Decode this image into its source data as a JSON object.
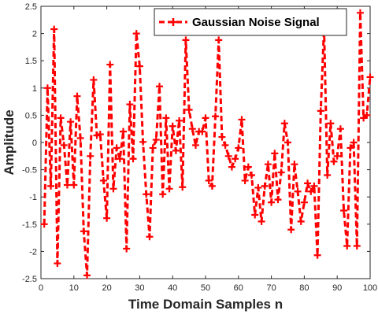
{
  "chart_data": {
    "type": "line",
    "xlabel": "Time Domain Samples n",
    "ylabel": "Amplitude",
    "xlim": [
      0,
      100
    ],
    "ylim": [
      -2.5,
      2.5
    ],
    "xticks": [
      0,
      10,
      20,
      30,
      40,
      50,
      60,
      70,
      80,
      90,
      100
    ],
    "yticks": [
      -2.5,
      -2,
      -1.5,
      -1,
      -0.5,
      0,
      0.5,
      1,
      1.5,
      2,
      2.5
    ],
    "grid": false,
    "legend_position": "top-right",
    "series": [
      {
        "name": "Gaussian Noise Signal",
        "color": "#ff0000",
        "line_style": "dashed",
        "marker": "plus",
        "x": [
          1,
          2,
          3,
          4,
          5,
          6,
          7,
          8,
          9,
          10,
          11,
          12,
          13,
          14,
          15,
          16,
          17,
          18,
          19,
          20,
          21,
          22,
          23,
          24,
          25,
          26,
          27,
          28,
          29,
          30,
          31,
          32,
          33,
          34,
          35,
          36,
          37,
          38,
          39,
          40,
          41,
          42,
          43,
          44,
          45,
          46,
          47,
          48,
          49,
          50,
          51,
          52,
          53,
          54,
          55,
          56,
          57,
          58,
          59,
          60,
          61,
          62,
          63,
          64,
          65,
          66,
          67,
          68,
          69,
          70,
          71,
          72,
          73,
          74,
          75,
          76,
          77,
          78,
          79,
          80,
          81,
          82,
          83,
          84,
          85,
          86,
          87,
          88,
          89,
          90,
          91,
          92,
          93,
          94,
          95,
          96,
          97,
          98,
          99,
          100
        ],
        "y": [
          -1.5,
          1.0,
          -0.8,
          2.08,
          -2.22,
          0.45,
          -0.05,
          -0.78,
          0.38,
          -0.78,
          0.85,
          0.08,
          -1.63,
          -2.44,
          -0.25,
          1.15,
          0.13,
          0.15,
          -0.7,
          -1.39,
          1.43,
          -0.85,
          -0.1,
          -0.3,
          0.2,
          -1.95,
          0.7,
          -0.3,
          2.0,
          1.4,
          0.01,
          -0.95,
          -1.73,
          -0.1,
          0.05,
          1.03,
          -0.95,
          0.45,
          -0.85,
          0.3,
          -0.15,
          0.4,
          -0.82,
          1.88,
          0.6,
          0.25,
          -0.05,
          0.2,
          0.2,
          0.45,
          -0.7,
          -0.8,
          0.48,
          1.88,
          0.1,
          -0.05,
          -0.25,
          -0.45,
          -0.3,
          -0.1,
          0.42,
          -0.7,
          -0.45,
          -0.6,
          -1.33,
          -0.83,
          -1.45,
          -0.8,
          -0.4,
          -1.1,
          -0.2,
          -1.05,
          -0.55,
          0.35,
          0.0,
          -1.6,
          -0.4,
          -0.9,
          -1.45,
          -1.1,
          -0.75,
          -0.9,
          -0.8,
          -2.07,
          0.58,
          2.1,
          -0.6,
          0.35,
          -0.35,
          -0.25,
          0.25,
          -1.25,
          -1.9,
          -0.1,
          0.0,
          -1.9,
          2.38,
          0.45,
          0.5,
          1.2
        ]
      }
    ]
  }
}
